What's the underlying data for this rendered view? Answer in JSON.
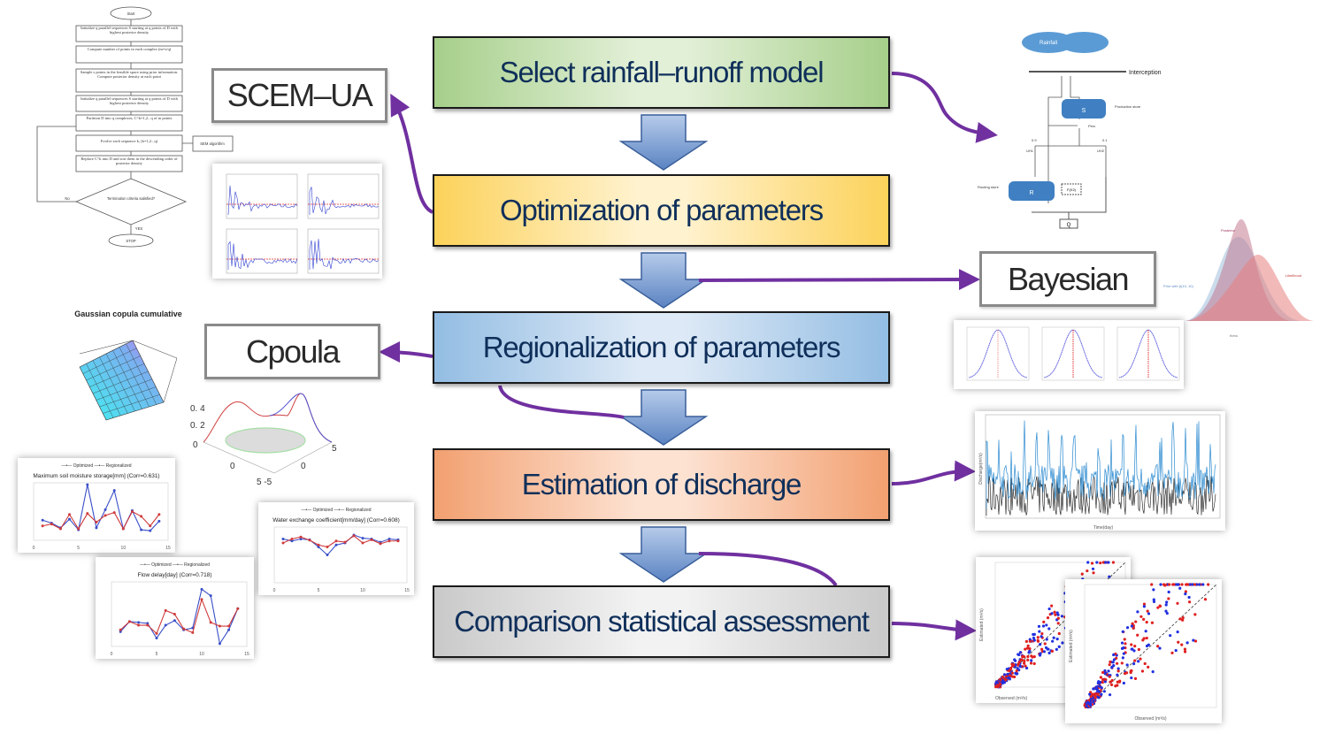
{
  "steps": [
    {
      "label": "Select rainfall–runoff model",
      "color": "#a6cf8a"
    },
    {
      "label": "Optimization of parameters",
      "color": "#fcd25a"
    },
    {
      "label": "Regionalization of parameters",
      "color": "#93bde3"
    },
    {
      "label": "Estimation of discharge",
      "color": "#f2a070"
    },
    {
      "label": "Comparison statistical assessment",
      "color": "#c9c9c9"
    }
  ],
  "tags": {
    "scem": "SCEM–UA",
    "bayesian": "Bayesian",
    "copula": "Cpoula"
  },
  "colors": {
    "connector": "#7030a0",
    "flow_arrow": "#4f7fc0"
  },
  "flowchart": {
    "start": "Start",
    "steps": [
      "Initialize q parallel sequences S starting at q points of D with highest posterior density",
      "Compute number of points in each complex (m=s/q)",
      "Sample s points in the feasible space using prior information. Compute posterior density at each point",
      "Initialize q parallel sequences S starting at q points of D with highest posterior density",
      "Partition D into q complexes, C^k=1,2...q of m points",
      "Evolve each sequence k, (k=1,2...q)",
      "Replace C^k into D and sort them in the descending order of posterior density"
    ],
    "side": "SEM algorithm",
    "decision": "Termination criteria satisfied?",
    "no": "No",
    "yes": "YES",
    "stop": "STOP"
  },
  "gr4j": {
    "rainfall": "Rainfall",
    "interception": "Interception",
    "production": "Production store",
    "s": "S",
    "routing": "Routing store",
    "r": "R",
    "uh1": "UH1",
    "uh2": "UH2",
    "q": "Q",
    "split1": "0.9",
    "split2": "0.1",
    "fx": "F(X2)",
    "pr": "Pr",
    "prec": "Perc"
  },
  "bayes_plot": {
    "posterior": "Posterior",
    "likelihood": "Likelihood",
    "prior": "Prior with β(10, 10)",
    "xlabel": "theta"
  },
  "copula": {
    "title": "Gaussian copula cumulative"
  },
  "line_charts": [
    {
      "title": "Maximum soil moisture storage[mm] (Corr=0.631)",
      "legend": [
        "Optimized",
        "Regionalized"
      ]
    },
    {
      "title": "Flow delay[day] (Corr=0.718)",
      "legend": [
        "Optimized",
        "Regionalized"
      ],
      "x": [
        1,
        2,
        3,
        4,
        5,
        6,
        7,
        8,
        9,
        10,
        11,
        12,
        13,
        14
      ],
      "series": [
        {
          "name": "Optimized",
          "values": [
            1.16,
            1.27,
            1.26,
            1.25,
            1.09,
            1.23,
            1.28,
            1.18,
            1.2,
            1.62,
            1.55,
            1.03,
            1.18,
            1.41
          ]
        },
        {
          "name": "Regionalized",
          "values": [
            1.18,
            1.27,
            1.23,
            1.23,
            1.14,
            1.39,
            1.35,
            1.19,
            1.15,
            1.51,
            1.26,
            1.22,
            1.22,
            1.41
          ]
        }
      ]
    },
    {
      "title": "Water exchange coefficient[mm/day] (Corr=0.608)",
      "legend": [
        "Optimized",
        "Regionalized"
      ]
    }
  ],
  "scatter": {
    "xlabel": "Observed (m³/s)",
    "ylabel": "Estimated (m³/s)"
  },
  "timeseries": {
    "xlabel": "Time(day)",
    "ylabel": "Discharge(m³/s)"
  }
}
